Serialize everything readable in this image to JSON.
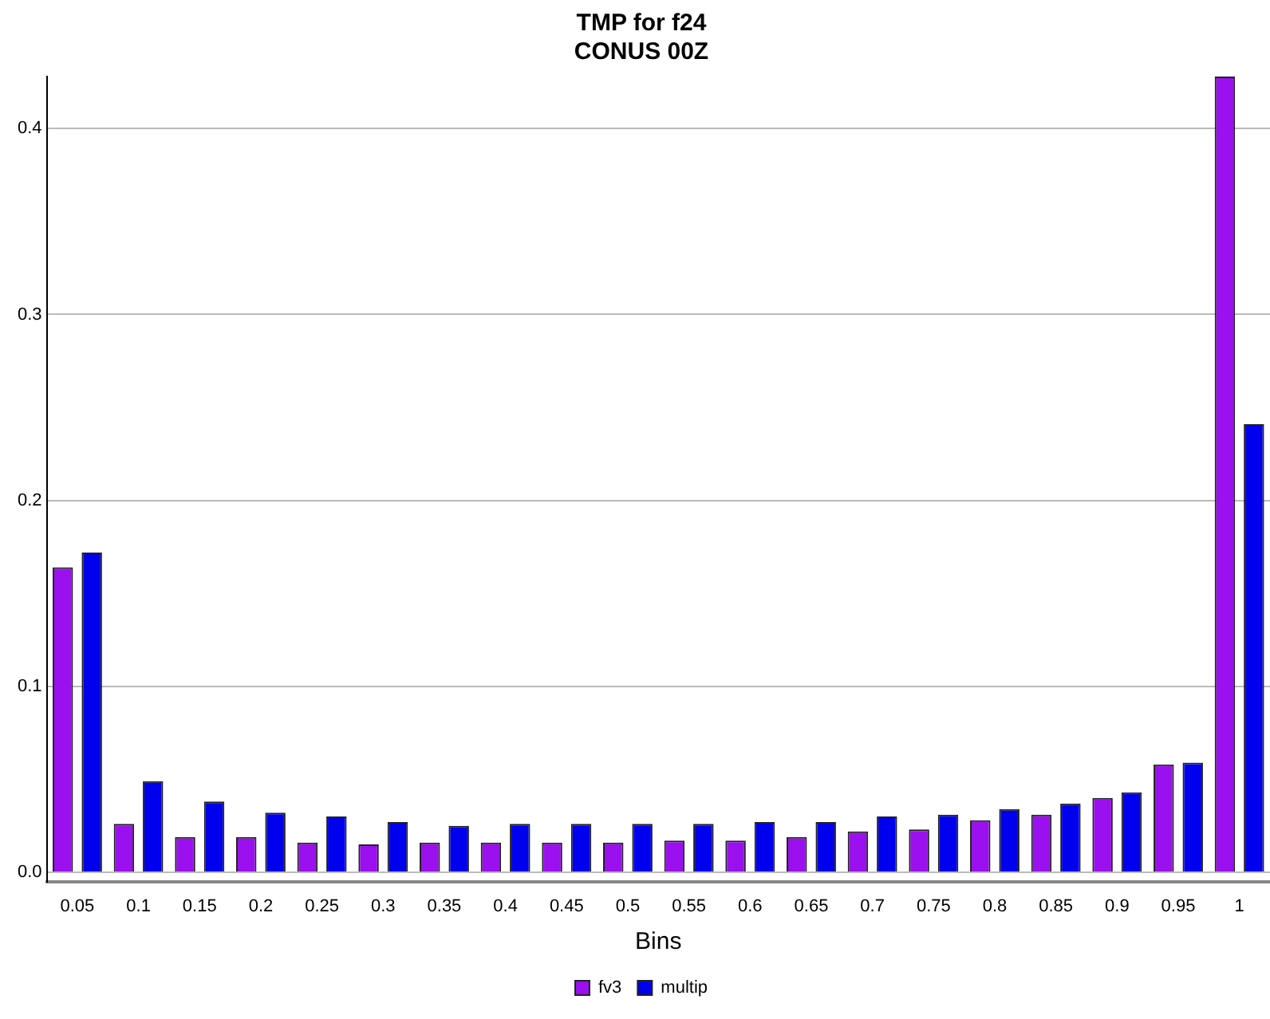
{
  "chart_data": {
    "type": "bar",
    "title": "TMP for f24\nCONUS 00Z",
    "xlabel": "Bins",
    "categories": [
      "0.05",
      "0.1",
      "0.15",
      "0.2",
      "0.25",
      "0.3",
      "0.35",
      "0.4",
      "0.45",
      "0.5",
      "0.55",
      "0.6",
      "0.65",
      "0.7",
      "0.75",
      "0.8",
      "0.85",
      "0.9",
      "0.95",
      "1"
    ],
    "series": [
      {
        "name": "fv3",
        "color": "#9b10ee",
        "values": [
          0.164,
          0.026,
          0.019,
          0.019,
          0.016,
          0.015,
          0.016,
          0.016,
          0.016,
          0.016,
          0.017,
          0.017,
          0.019,
          0.022,
          0.023,
          0.028,
          0.031,
          0.04,
          0.058,
          0.428
        ]
      },
      {
        "name": "multip",
        "color": "#0000ee",
        "values": [
          0.172,
          0.049,
          0.038,
          0.032,
          0.03,
          0.027,
          0.025,
          0.026,
          0.026,
          0.026,
          0.026,
          0.027,
          0.027,
          0.03,
          0.031,
          0.034,
          0.037,
          0.043,
          0.059,
          0.241
        ]
      }
    ],
    "ylim": [
      -0.005,
      0.428
    ],
    "yticks": [
      {
        "value": 0,
        "label": "0.0"
      },
      0.1,
      0.2,
      0.3,
      0.4
    ],
    "grid": "y",
    "legend": "bottom"
  }
}
